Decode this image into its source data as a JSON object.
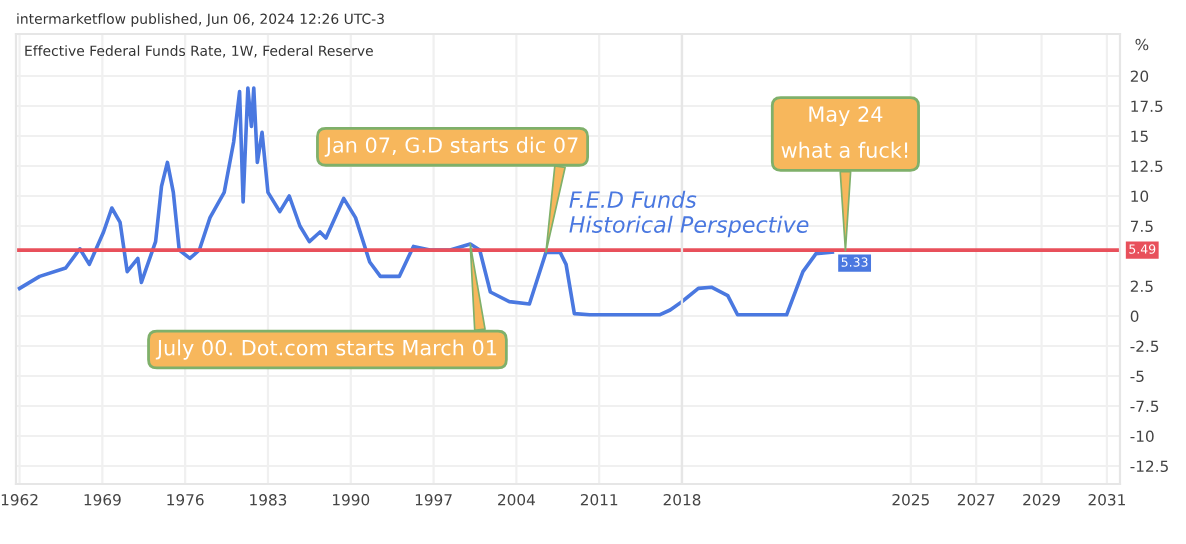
{
  "chart_data": [
    {
      "type": "line",
      "title": "intermarketflow published, Jun 06, 2024 12:26 UTC-3",
      "subtitle": "Effective Federal Funds Rate, 1W, Federal Reserve",
      "series": [
        {
          "color": "#4a78e0",
          "x": [
            1962.0,
            1963.7,
            1965.9,
            1967.1,
            1967.9,
            1969.1,
            1969.8,
            1970.5,
            1971.1,
            1972.0,
            1972.3,
            1973.5,
            1974.0,
            1974.5,
            1975.0,
            1975.5,
            1976.4,
            1977.2,
            1978.1,
            1979.3,
            1980.1,
            1980.6,
            1980.9,
            1981.3,
            1981.6,
            1981.8,
            1982.1,
            1982.5,
            1983.0,
            1984.0,
            1984.8,
            1985.7,
            1986.5,
            1987.4,
            1987.9,
            1989.4,
            1990.4,
            1991.6,
            1992.5,
            1994.1,
            1995.3,
            1996.7,
            1998.4,
            2000.1,
            2000.9,
            2001.8,
            2003.4,
            2005.1,
            2006.5,
            2007.7,
            2008.2,
            2008.9,
            2010.2,
            2016.1,
            2017.0,
            2018.0
          ],
          "values": [
            2.3,
            3.3,
            4,
            5.6,
            4.3,
            7,
            9,
            7.8,
            3.7,
            4.8,
            2.8,
            6.2,
            10.8,
            12.8,
            10.3,
            5.5,
            4.8,
            5.5,
            8.2,
            10.3,
            14.5,
            18.7,
            9.5,
            19,
            15.8,
            19,
            12.8,
            15.3,
            10.3,
            8.7,
            10,
            7.5,
            6.2,
            7,
            6.5,
            9.8,
            8.2,
            4.5,
            3.3,
            3.3,
            5.8,
            5.5,
            5.5,
            6,
            5.5,
            2,
            1.2,
            1,
            5.3,
            5.3,
            4.3,
            0.2,
            0.1,
            0.1,
            0.5,
            1.2
          ]
        }
      ],
      "xlim": [
        1961.7,
        2018
      ],
      "xticks": [
        1962,
        1969,
        1976,
        1983,
        1990,
        1997,
        2004,
        2011,
        2018
      ],
      "ylim": [
        -14,
        23.5
      ],
      "yticks": [
        -12.5,
        -10,
        -7.5,
        -5,
        -2.5,
        0,
        2.5,
        7.5,
        10,
        12.5,
        15,
        17.5,
        20
      ],
      "tick_labels": "x",
      "grid": true,
      "ref_lines": [
        {
          "axis": "y",
          "value": 5.49,
          "color": "#e8505b"
        }
      ],
      "annotations": [
        {
          "text": "Jan 07, G.D starts dic 07",
          "x": 2006.5,
          "y": 5.3
        },
        {
          "text": "July 00. Dot.com starts March 01",
          "x": 2000.1,
          "y": 6
        },
        "F.E.D Funds\nHistorical Perspective"
      ]
    },
    {
      "type": "line",
      "ylabel": "%",
      "series": [
        {
          "color": "#4a78e0",
          "x": [
            2018.0,
            2018.5,
            2018.9,
            2019.4,
            2019.7,
            2021.2,
            2021.7,
            2022.1,
            2022.6
          ],
          "values": [
            1.2,
            2.3,
            2.4,
            1.7,
            0.1,
            0.1,
            3.7,
            5.2,
            5.33
          ],
          "value_labels": [
            null,
            null,
            null,
            null,
            null,
            null,
            null,
            null,
            "5.33"
          ]
        }
      ],
      "xlim": [
        2018,
        2031.4
      ],
      "xticks": [
        2025,
        2027,
        2029,
        2031
      ],
      "ylim": [
        -14,
        23.5
      ],
      "yticks": [
        -12.5,
        -10,
        -7.5,
        -5,
        -2.5,
        0,
        2.5,
        7.5,
        10,
        12.5,
        15,
        17.5,
        20
      ],
      "grid": true,
      "ref_lines": [
        {
          "axis": "y",
          "value": 5.49,
          "label": "5.49",
          "color": "#e8505b"
        }
      ],
      "annotations": [
        {
          "text": "May 24\nwhat a fuck!",
          "x": 2023.0,
          "y": 5.45
        }
      ]
    }
  ]
}
